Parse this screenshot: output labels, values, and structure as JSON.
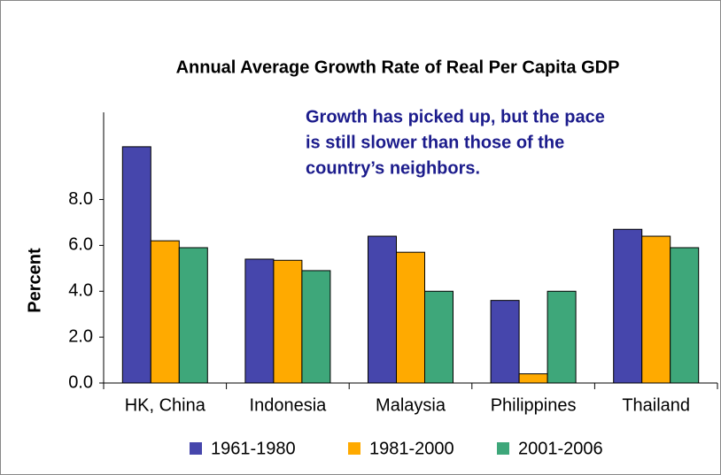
{
  "chart_data": {
    "type": "bar",
    "title": "Annual Average Growth Rate of Real Per Capita GDP",
    "annotation": [
      "Growth has picked up, but the pace",
      "is still slower than those of the",
      "country’s neighbors."
    ],
    "y_label": "Percent",
    "categories": [
      "HK, China",
      "Indonesia",
      "Malaysia",
      "Philippines",
      "Thailand"
    ],
    "series": [
      {
        "name": "1961-1980",
        "color": "#4646ac",
        "values": [
          10.3,
          5.4,
          6.4,
          3.6,
          6.7
        ]
      },
      {
        "name": "1981-2000",
        "color": "#ffaa00",
        "values": [
          6.2,
          5.35,
          5.7,
          0.4,
          6.4
        ]
      },
      {
        "name": "2001-2006",
        "color": "#3ea77a",
        "values": [
          5.9,
          4.9,
          4.0,
          4.0,
          5.9
        ]
      }
    ],
    "ylim": [
      0,
      11.8
    ],
    "yticks": [
      {
        "value": 0,
        "label": "0.0"
      },
      {
        "value": 2,
        "label": "2.0"
      },
      {
        "value": 4,
        "label": "4.0"
      },
      {
        "value": 6,
        "label": "6.0"
      },
      {
        "value": 8,
        "label": "8.0"
      }
    ],
    "legend": "bottom"
  }
}
